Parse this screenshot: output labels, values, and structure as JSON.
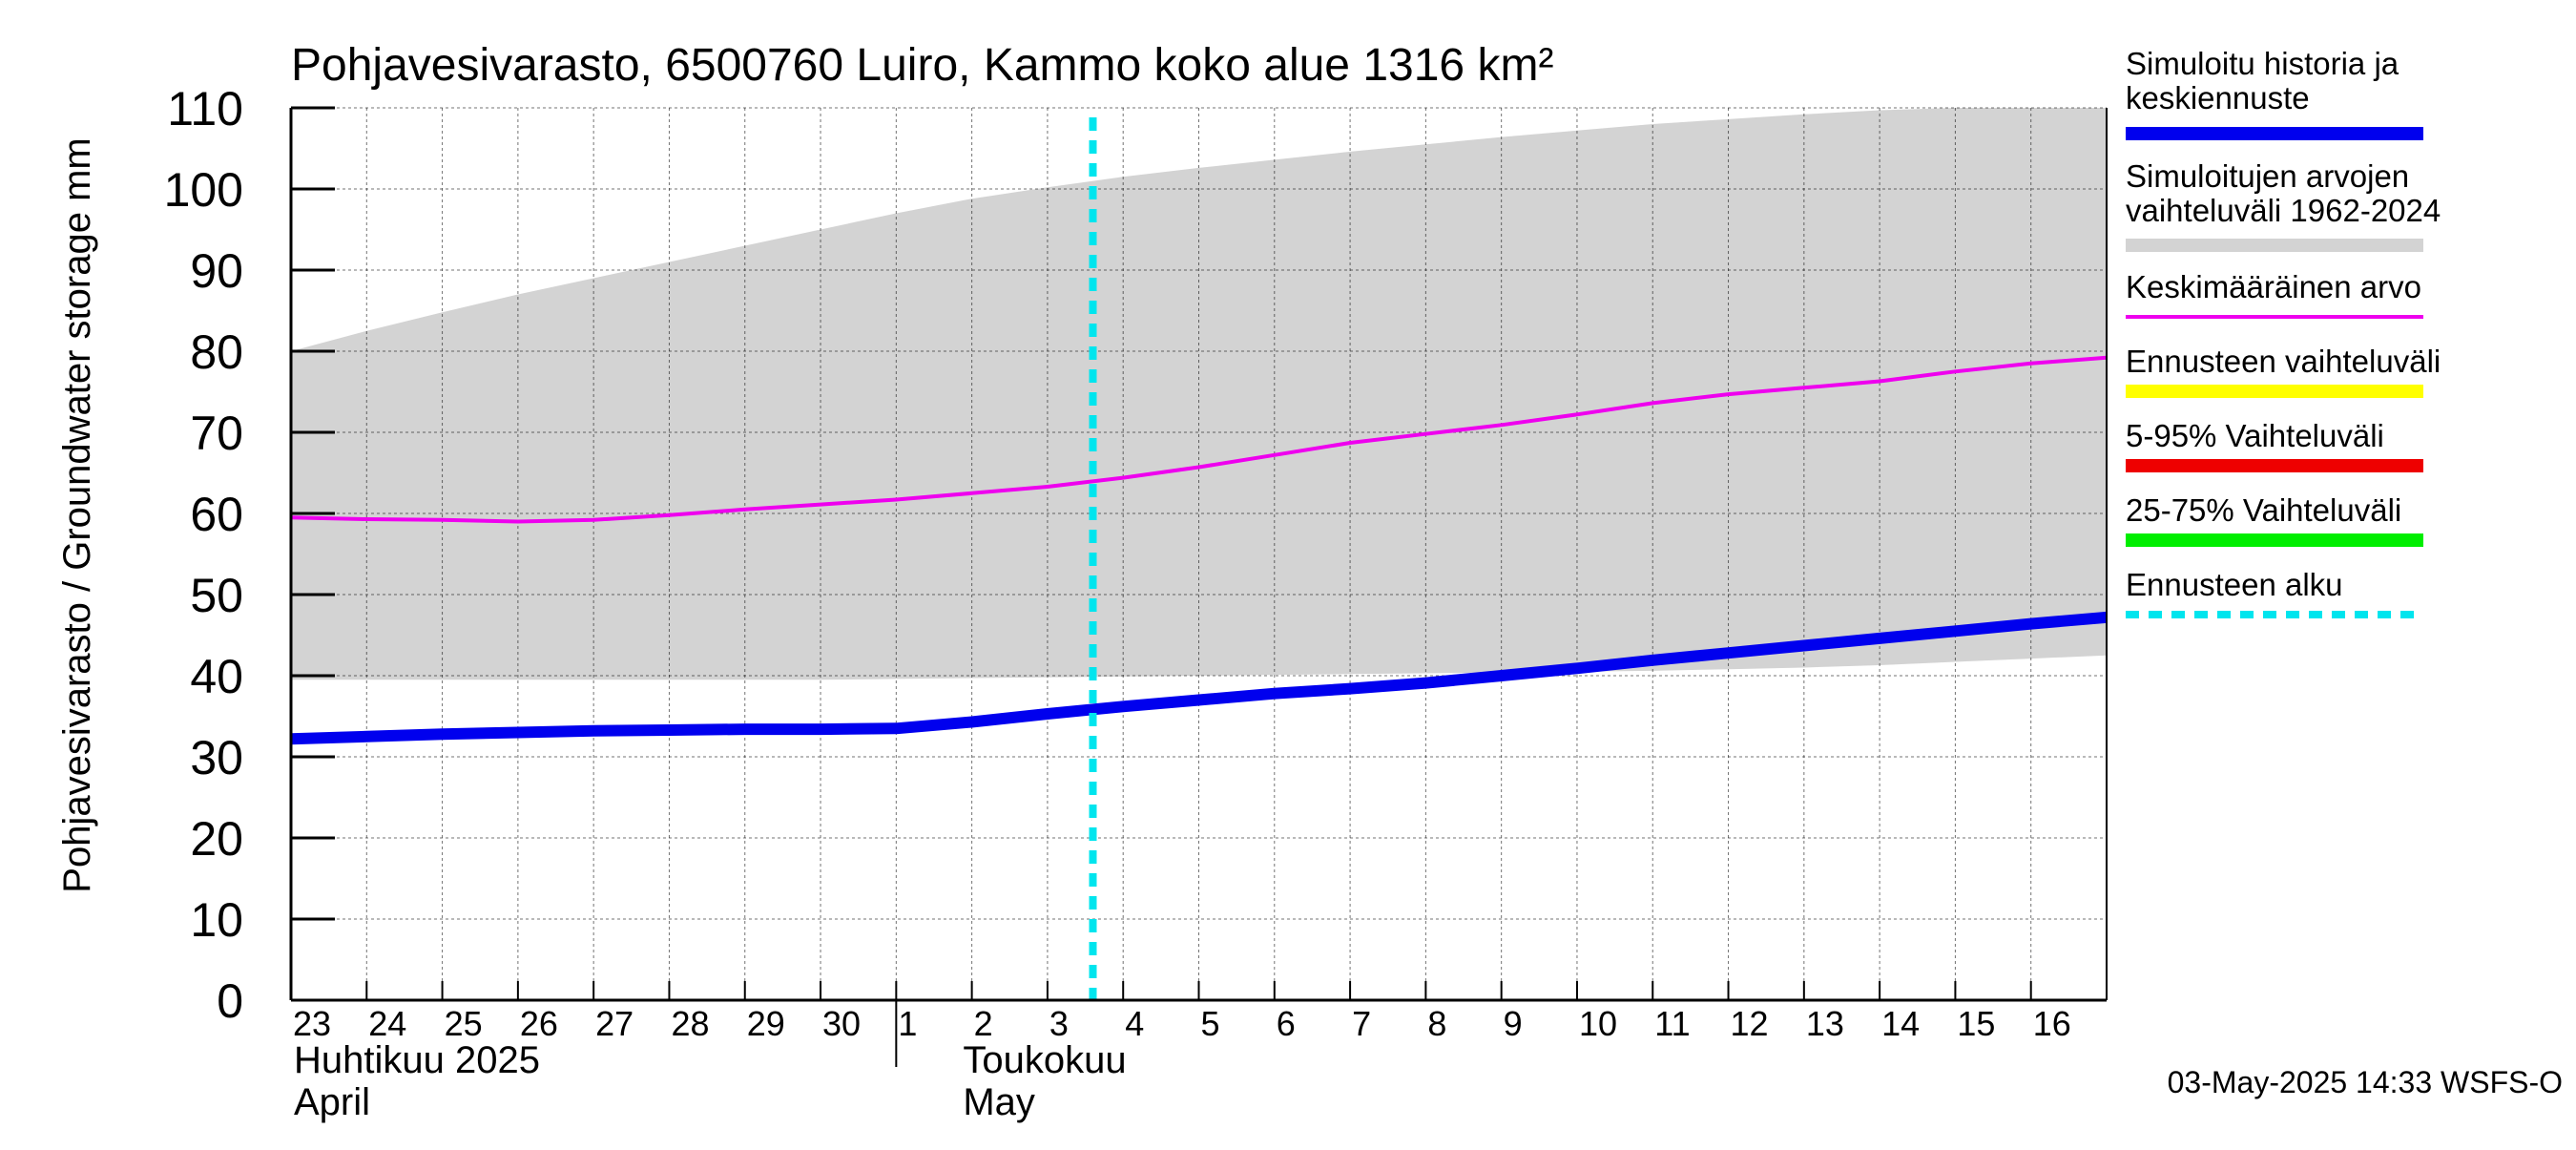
{
  "chart_data": {
    "type": "area",
    "title": "Pohjavesivarasto, 6500760 Luiro, Kammo koko alue 1316 km²",
    "ylabel": "Pohjavesivarasto / Groundwater storage   mm",
    "ylim": [
      0,
      110
    ],
    "yticks": [
      0,
      10,
      20,
      30,
      40,
      50,
      60,
      70,
      80,
      90,
      100,
      110
    ],
    "grid": true,
    "legend_position": "right",
    "xlim": [
      "2025-04-23",
      "2025-05-16T24:00"
    ],
    "x_tick_labels": [
      "23",
      "24",
      "25",
      "26",
      "27",
      "28",
      "29",
      "30",
      "1",
      "2",
      "3",
      "4",
      "5",
      "6",
      "7",
      "8",
      "9",
      "10",
      "11",
      "12",
      "13",
      "14",
      "15",
      "16"
    ],
    "month_labels": [
      {
        "fi": "Huhtikuu  2025",
        "en": "April"
      },
      {
        "fi": "Toukokuu",
        "en": "May"
      }
    ],
    "x": [
      "2025-04-23",
      "2025-04-24",
      "2025-04-25",
      "2025-04-26",
      "2025-04-27",
      "2025-04-28",
      "2025-04-29",
      "2025-04-30",
      "2025-05-01",
      "2025-05-02",
      "2025-05-03",
      "2025-05-04",
      "2025-05-05",
      "2025-05-06",
      "2025-05-07",
      "2025-05-08",
      "2025-05-09",
      "2025-05-10",
      "2025-05-11",
      "2025-05-12",
      "2025-05-13",
      "2025-05-14",
      "2025-05-15",
      "2025-05-16",
      "2025-05-17"
    ],
    "range_band": {
      "name": "Simuloitujen arvojen vaihteluväli 1962-2024",
      "color": "#d3d3d3",
      "upper": [
        80,
        82.5,
        84.8,
        87,
        89,
        91,
        93,
        95,
        97,
        98.8,
        100.2,
        101.5,
        102.6,
        103.6,
        104.6,
        105.5,
        106.4,
        107.2,
        108,
        108.6,
        109.2,
        109.7,
        110,
        110.3,
        110.5
      ],
      "lower": [
        39.5,
        39.5,
        39.5,
        39.5,
        39.5,
        39.5,
        39.5,
        39.5,
        39.6,
        39.7,
        39.8,
        39.9,
        40,
        40.1,
        40.2,
        40.3,
        40.4,
        40.5,
        40.6,
        40.8,
        41,
        41.3,
        41.7,
        42.1,
        42.5
      ]
    },
    "series": [
      {
        "name": "Simuloitu historia ja keskiennuste",
        "color": "#0000ee",
        "values": [
          32.2,
          32.5,
          32.8,
          33,
          33.2,
          33.3,
          33.4,
          33.4,
          33.5,
          34.3,
          35.3,
          36.2,
          37,
          37.8,
          38.4,
          39.1,
          40,
          40.9,
          41.9,
          42.8,
          43.7,
          44.6,
          45.5,
          46.4,
          47.2
        ],
        "forecast_start": "2025-05-03"
      },
      {
        "name": "Keskimääräinen arvo",
        "color": "#ee00ee",
        "values": [
          59.5,
          59.3,
          59.2,
          59,
          59.2,
          59.8,
          60.5,
          61.1,
          61.7,
          62.5,
          63.3,
          64.4,
          65.7,
          67.2,
          68.7,
          69.8,
          70.9,
          72.2,
          73.6,
          74.7,
          75.5,
          76.3,
          77.5,
          78.5,
          79.2
        ]
      }
    ],
    "forecast_start_date": "2025-05-03",
    "legend": [
      {
        "label": "Simuloitu historia ja keskiennuste",
        "color": "#0000ee",
        "style": "thick"
      },
      {
        "label": "Simuloitujen arvojen vaihteluväli 1962-2024",
        "color": "#d3d3d3",
        "style": "thick"
      },
      {
        "label": "Keskimääräinen arvo",
        "color": "#ee00ee",
        "style": "thin"
      },
      {
        "label": "Ennusteen vaihteluväli",
        "color": "#ffff00",
        "style": "thick"
      },
      {
        "label": "5-95% Vaihteluväli",
        "color": "#ee0000",
        "style": "thick"
      },
      {
        "label": "25-75% Vaihteluväli",
        "color": "#00ee00",
        "style": "thick"
      },
      {
        "label": "Ennusteen alku",
        "color": "#00e5ee",
        "style": "dashed"
      }
    ]
  },
  "footer": {
    "timestamp": "03-May-2025 14:33 WSFS-O"
  }
}
